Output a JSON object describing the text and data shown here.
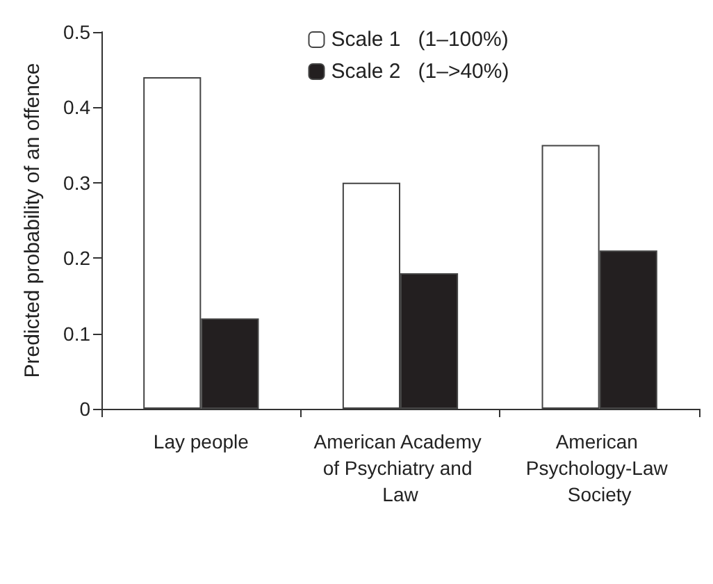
{
  "chart_data": {
    "type": "bar",
    "ylabel": "Predicted probability of an offence",
    "categories": [
      "Lay people",
      "American Academy of Psychiatry and Law",
      "American Psychology-Law Society"
    ],
    "series": [
      {
        "name": "Scale 1   (1–100%)",
        "color": "#ffffff",
        "values": [
          0.44,
          0.3,
          0.35
        ]
      },
      {
        "name": "Scale 2   (1–>40%)",
        "color": "#231f20",
        "values": [
          0.12,
          0.18,
          0.21
        ]
      }
    ],
    "ylim": [
      0,
      0.5
    ],
    "yticks": [
      0,
      0.1,
      0.2,
      0.3,
      0.4,
      0.5
    ],
    "grid": false,
    "legend": "top"
  }
}
